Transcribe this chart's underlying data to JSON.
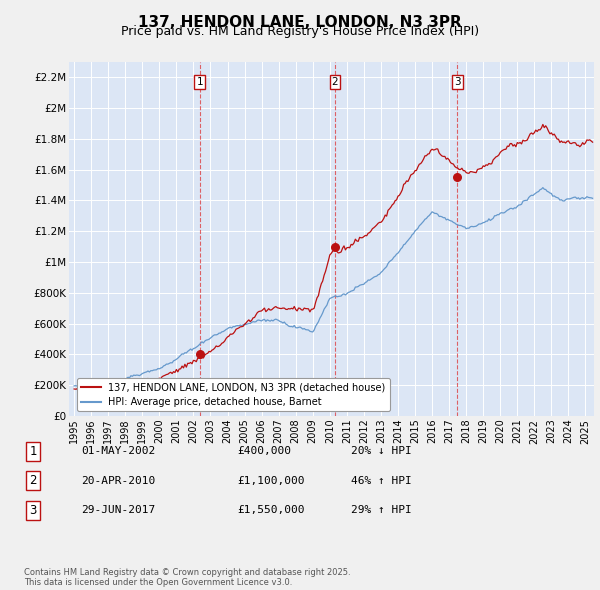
{
  "title": "137, HENDON LANE, LONDON, N3 3PR",
  "subtitle": "Price paid vs. HM Land Registry's House Price Index (HPI)",
  "title_fontsize": 11,
  "subtitle_fontsize": 9,
  "ylim": [
    0,
    2300000
  ],
  "yticks": [
    0,
    200000,
    400000,
    600000,
    800000,
    1000000,
    1200000,
    1400000,
    1600000,
    1800000,
    2000000,
    2200000
  ],
  "ytick_labels": [
    "£0",
    "£200K",
    "£400K",
    "£600K",
    "£800K",
    "£1M",
    "£1.2M",
    "£1.4M",
    "£1.6M",
    "£1.8M",
    "£2M",
    "£2.2M"
  ],
  "hpi_color": "#6699cc",
  "price_color": "#bb1111",
  "vline_color": "#dd3333",
  "background_color": "#dce6f5",
  "grid_color": "#ffffff",
  "transactions": [
    {
      "num": 1,
      "date": "01-MAY-2002",
      "price": 400000,
      "hpi_diff": "20% ↓ HPI",
      "year": 2002.37
    },
    {
      "num": 2,
      "date": "20-APR-2010",
      "price": 1100000,
      "hpi_diff": "46% ↑ HPI",
      "year": 2010.3
    },
    {
      "num": 3,
      "date": "29-JUN-2017",
      "price": 1550000,
      "hpi_diff": "29% ↑ HPI",
      "year": 2017.49
    }
  ],
  "footer": "Contains HM Land Registry data © Crown copyright and database right 2025.\nThis data is licensed under the Open Government Licence v3.0.",
  "legend_entries": [
    "137, HENDON LANE, LONDON, N3 3PR (detached house)",
    "HPI: Average price, detached house, Barnet"
  ]
}
